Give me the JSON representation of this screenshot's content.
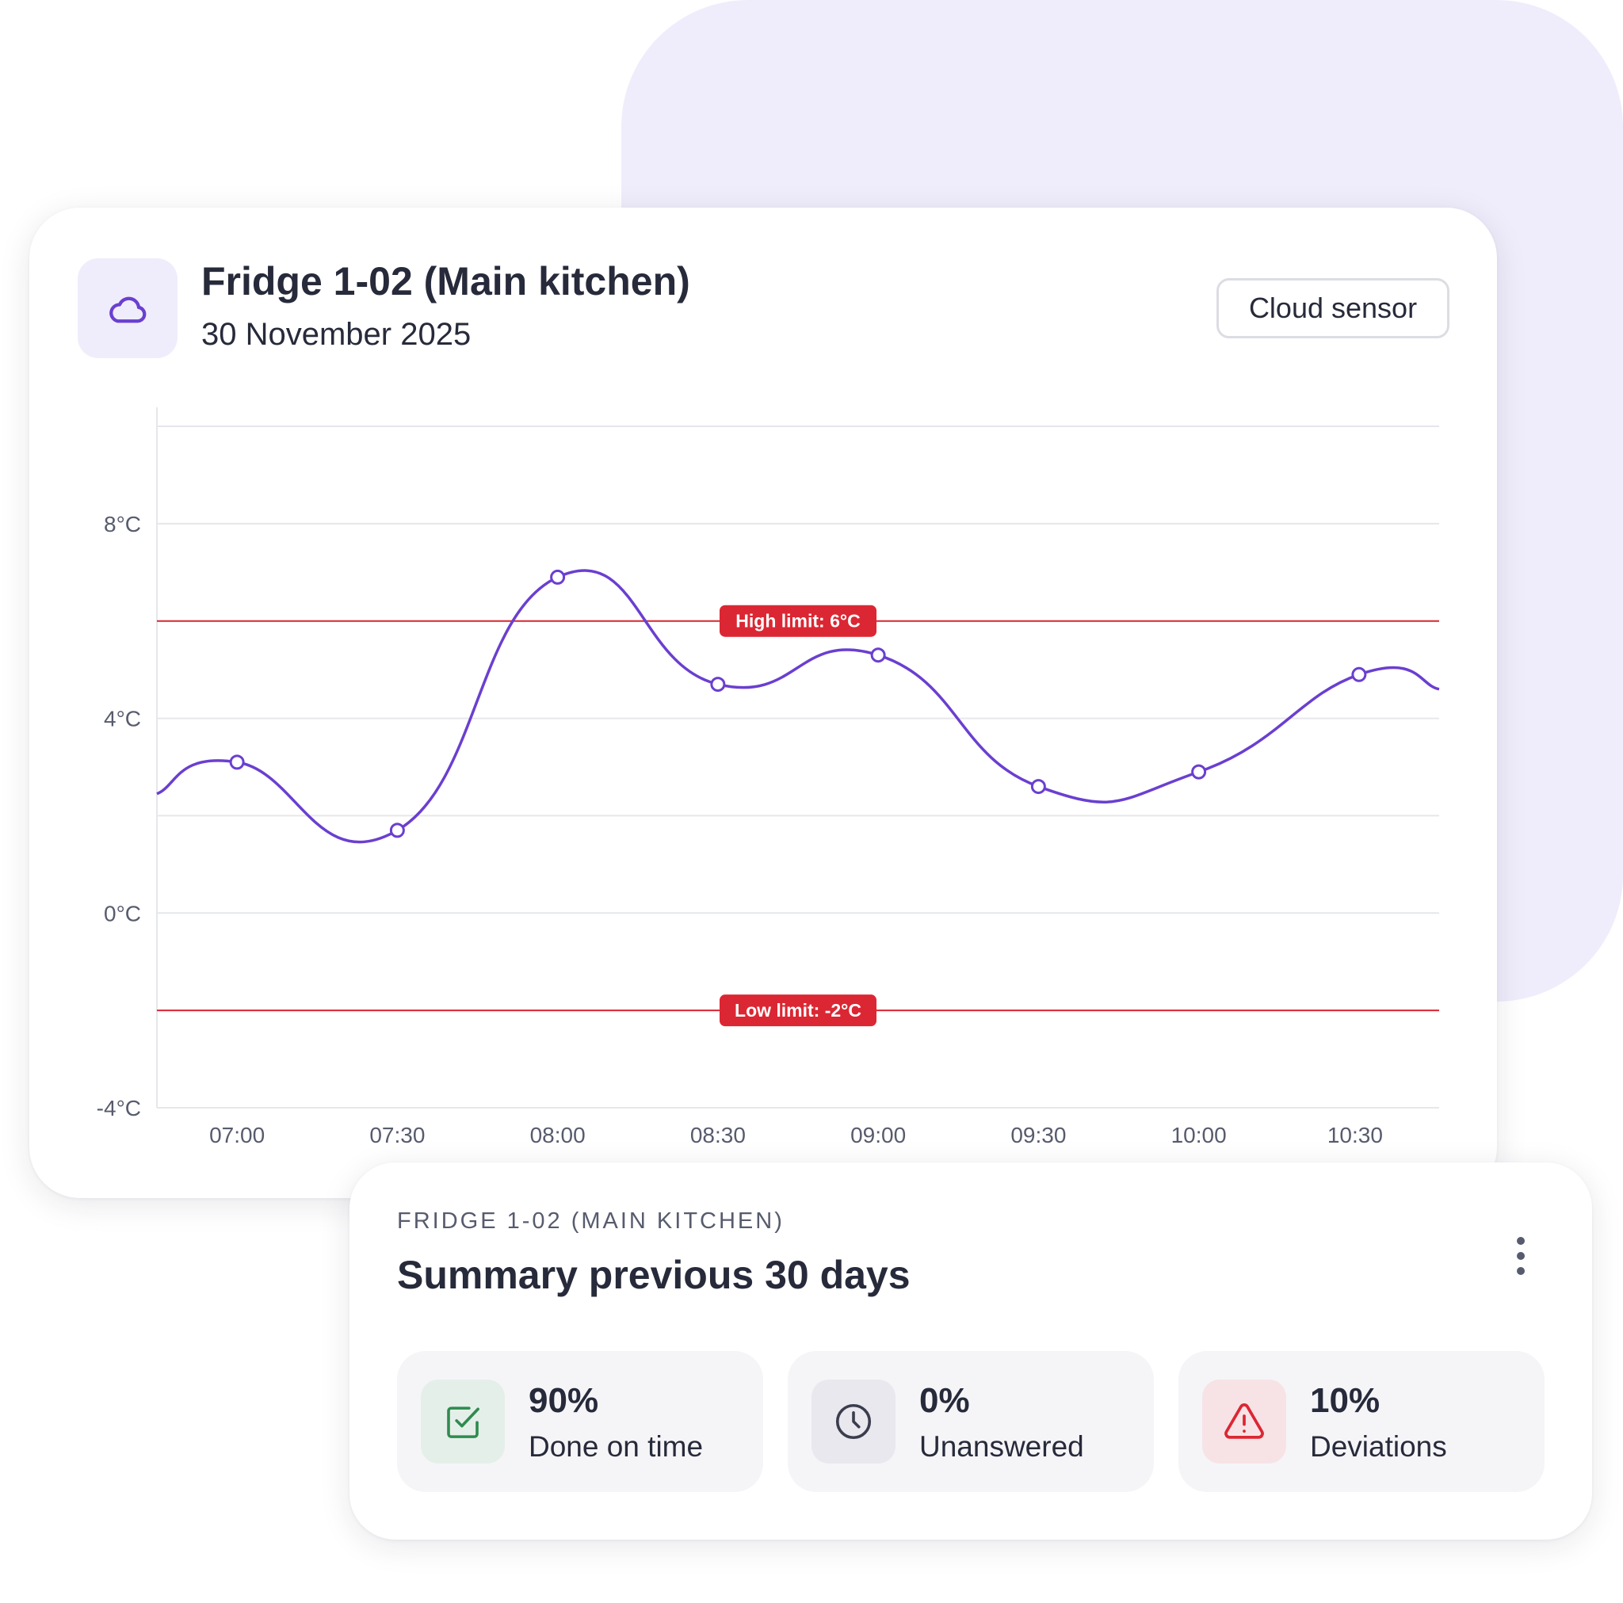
{
  "sensor_card": {
    "title": "Fridge 1-02 (Main kitchen)",
    "date": "30 November 2025",
    "badge": "Cloud sensor",
    "icon": "cloud-icon"
  },
  "chart_data": {
    "type": "line",
    "title": "",
    "xlabel": "",
    "ylabel": "",
    "x_ticks": [
      "07:00",
      "07:30",
      "08:00",
      "08:30",
      "09:00",
      "09:30",
      "10:00",
      "10:30"
    ],
    "y_ticks": [
      "8°C",
      "4°C",
      "0°C",
      "-4°C"
    ],
    "y_tick_values": [
      8,
      4,
      0,
      -4
    ],
    "ylim": [
      -4,
      10
    ],
    "grid": true,
    "series": [
      {
        "color": "#6a3fd0",
        "points": [
          {
            "x": "07:00",
            "y": 3.1
          },
          {
            "x": "07:30",
            "y": 1.7
          },
          {
            "x": "08:00",
            "y": 6.9
          },
          {
            "x": "08:30",
            "y": 4.7
          },
          {
            "x": "09:00",
            "y": 5.3
          },
          {
            "x": "09:30",
            "y": 2.6
          },
          {
            "x": "10:00",
            "y": 2.9
          },
          {
            "x": "10:30",
            "y": 4.9
          }
        ]
      }
    ],
    "limits": [
      {
        "label": "High limit: 6°C",
        "value": 6,
        "color": "#db2733"
      },
      {
        "label": "Low limit: -2°C",
        "value": -2,
        "color": "#db2733"
      }
    ]
  },
  "summary": {
    "subtitle": "FRIDGE 1-02 (MAIN KITCHEN)",
    "title": "Summary previous 30 days",
    "more_icon": "more-vertical-icon",
    "stats": [
      {
        "value": "90%",
        "label": "Done on time",
        "icon": "check-square-icon",
        "color": "#2e8b4e",
        "bg": "#e5efe9"
      },
      {
        "value": "0%",
        "label": "Unanswered",
        "icon": "clock-icon",
        "color": "#3a3d4d",
        "bg": "#e8e8ee"
      },
      {
        "value": "10%",
        "label": "Deviations",
        "icon": "warning-icon",
        "color": "#db2733",
        "bg": "#f7e3e6"
      }
    ]
  },
  "colors": {
    "accent": "#6a3fd0",
    "limit": "#db2733",
    "background_blob": "#efedfb"
  }
}
